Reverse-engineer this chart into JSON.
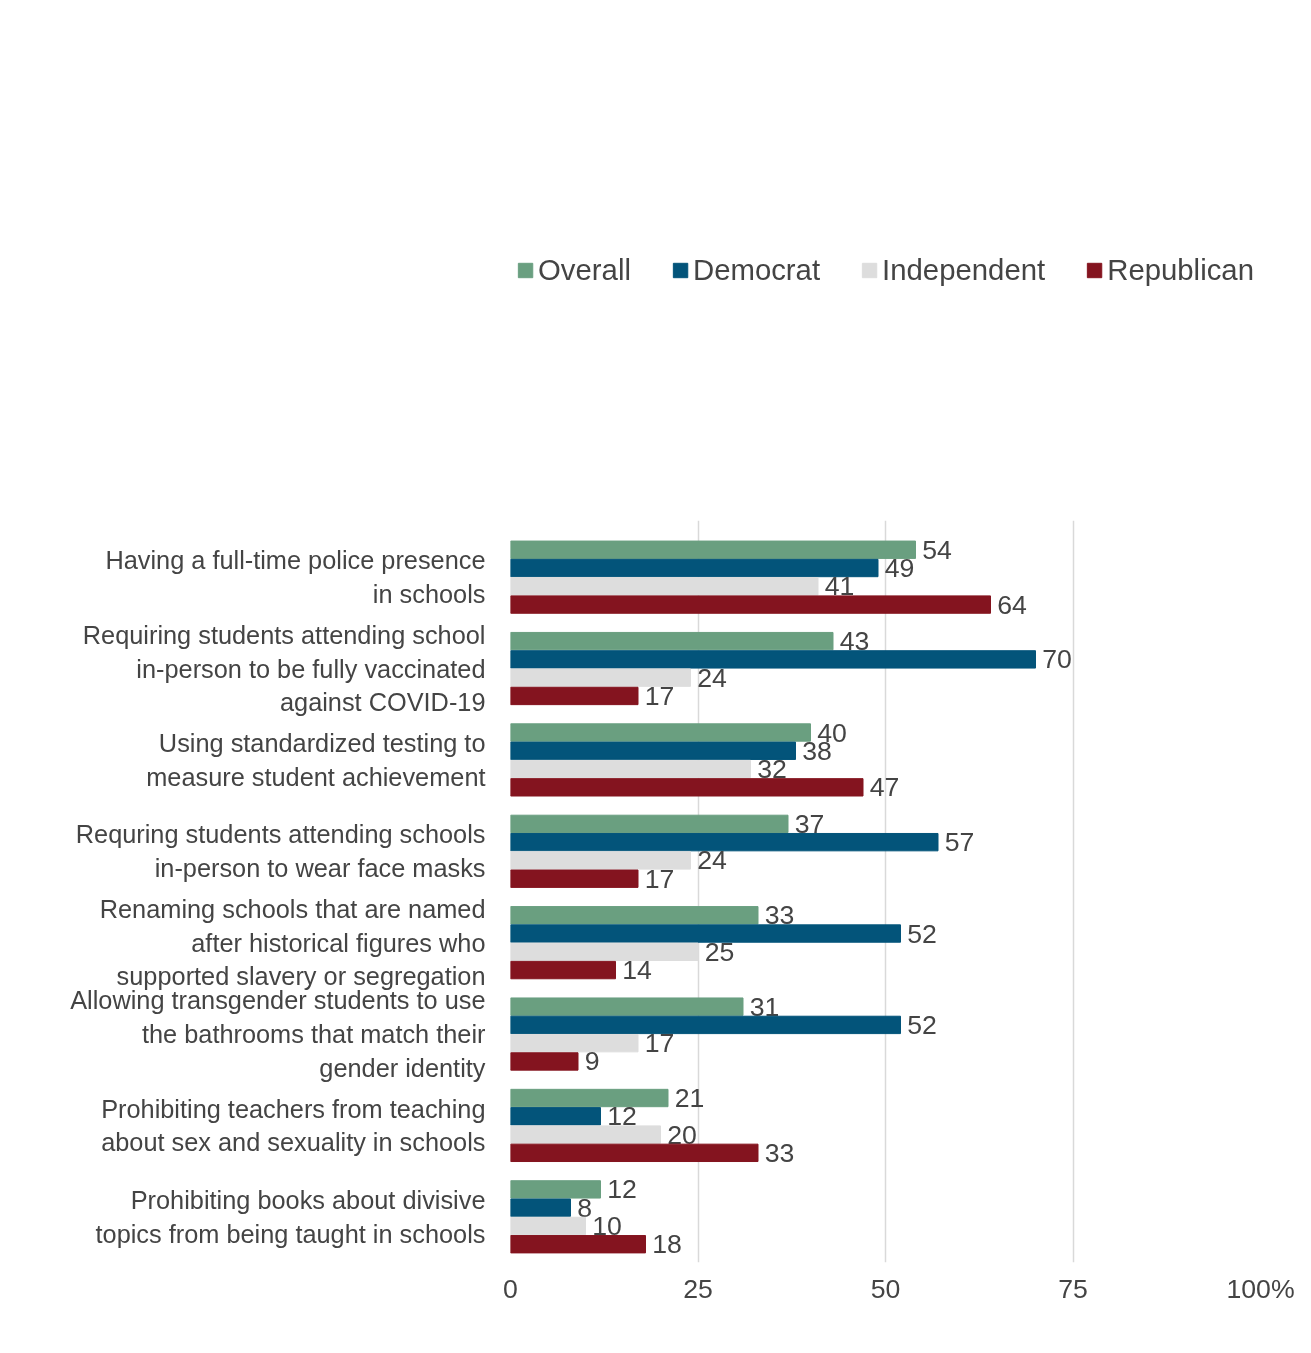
{
  "chart_data": {
    "type": "bar",
    "orientation": "horizontal",
    "categories": [
      "Having a full-time police presence in schools",
      "Requiring students attending school in-person to be fully vaccinated against COVID-19",
      "Using standardized testing to measure student achievement",
      "Requring students attending schools in-person to wear face masks",
      "Renaming schools that are named after historical figures who supported slavery or segregation",
      "Allowing transgender students to use the bathrooms that match their gender identity",
      "Prohibiting teachers from teaching about sex and sexuality in schools",
      "Prohibiting books about divisive topics from being taught in schools"
    ],
    "series": [
      {
        "name": "Overall",
        "color": "#6a9f80",
        "values": [
          54,
          43,
          40,
          37,
          33,
          31,
          21,
          12
        ]
      },
      {
        "name": "Democrat",
        "color": "#03547a",
        "values": [
          49,
          70,
          38,
          57,
          52,
          52,
          12,
          8
        ]
      },
      {
        "name": "Independent",
        "color": "#dddddd",
        "values": [
          41,
          24,
          32,
          24,
          25,
          17,
          20,
          10
        ]
      },
      {
        "name": "Republican",
        "color": "#84141f",
        "values": [
          64,
          17,
          47,
          17,
          14,
          9,
          33,
          18
        ]
      }
    ],
    "xlim": [
      0,
      100
    ],
    "xticks": [
      0,
      25,
      50,
      75,
      {
        "value": 100,
        "label": "100%"
      }
    ],
    "grid": "x",
    "legend": "top",
    "data_labels": true,
    "tick_labels": "x"
  }
}
